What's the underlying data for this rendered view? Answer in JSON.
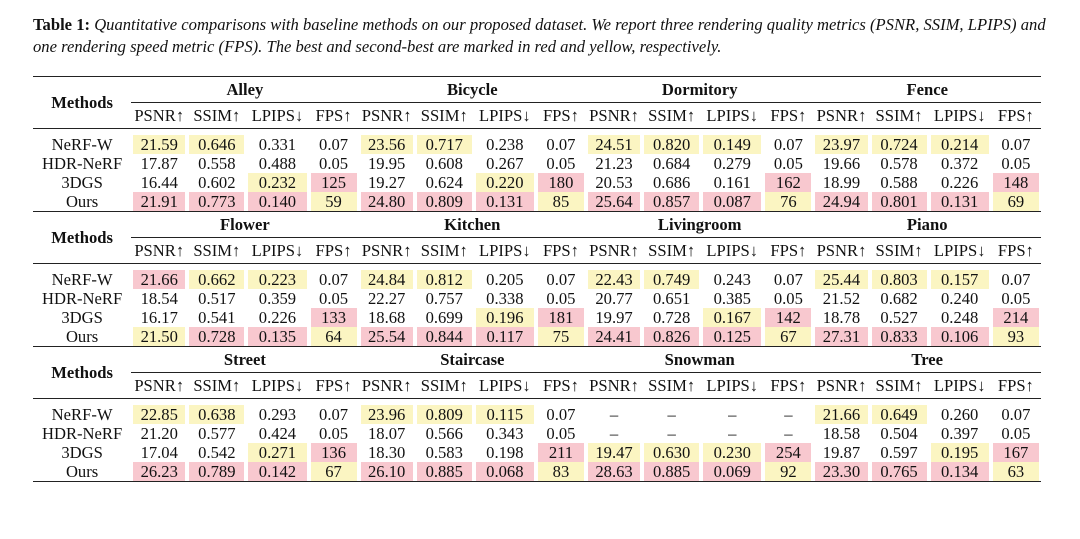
{
  "caption": {
    "label": "Table 1:",
    "text": "Quantitative comparisons with baseline methods on our proposed dataset. We report three rendering quality metrics (PSNR, SSIM, LPIPS) and one rendering speed metric (FPS). The best and second-best are marked in red and yellow, respectively."
  },
  "colors": {
    "best": "#f8c8cf",
    "second": "#fbf5c2"
  },
  "methods_label": "Methods",
  "metric_labels": [
    "PSNR↑",
    "SSIM↑",
    "LPIPS↓",
    "FPS↑"
  ],
  "sections": [
    {
      "scenes": [
        "Alley",
        "Bicycle",
        "Dormitory",
        "Fence"
      ],
      "rows": [
        {
          "method": "NeRF-W",
          "cells": [
            {
              "v": "21.59",
              "hl": "second"
            },
            {
              "v": "0.646",
              "hl": "second"
            },
            {
              "v": "0.331",
              "hl": ""
            },
            {
              "v": "0.07",
              "hl": ""
            },
            {
              "v": "23.56",
              "hl": "second"
            },
            {
              "v": "0.717",
              "hl": "second"
            },
            {
              "v": "0.238",
              "hl": ""
            },
            {
              "v": "0.07",
              "hl": ""
            },
            {
              "v": "24.51",
              "hl": "second"
            },
            {
              "v": "0.820",
              "hl": "second"
            },
            {
              "v": "0.149",
              "hl": "second"
            },
            {
              "v": "0.07",
              "hl": ""
            },
            {
              "v": "23.97",
              "hl": "second"
            },
            {
              "v": "0.724",
              "hl": "second"
            },
            {
              "v": "0.214",
              "hl": "second"
            },
            {
              "v": "0.07",
              "hl": ""
            }
          ]
        },
        {
          "method": "HDR-NeRF",
          "cells": [
            {
              "v": "17.87",
              "hl": ""
            },
            {
              "v": "0.558",
              "hl": ""
            },
            {
              "v": "0.488",
              "hl": ""
            },
            {
              "v": "0.05",
              "hl": ""
            },
            {
              "v": "19.95",
              "hl": ""
            },
            {
              "v": "0.608",
              "hl": ""
            },
            {
              "v": "0.267",
              "hl": ""
            },
            {
              "v": "0.05",
              "hl": ""
            },
            {
              "v": "21.23",
              "hl": ""
            },
            {
              "v": "0.684",
              "hl": ""
            },
            {
              "v": "0.279",
              "hl": ""
            },
            {
              "v": "0.05",
              "hl": ""
            },
            {
              "v": "19.66",
              "hl": ""
            },
            {
              "v": "0.578",
              "hl": ""
            },
            {
              "v": "0.372",
              "hl": ""
            },
            {
              "v": "0.05",
              "hl": ""
            }
          ]
        },
        {
          "method": "3DGS",
          "cells": [
            {
              "v": "16.44",
              "hl": ""
            },
            {
              "v": "0.602",
              "hl": ""
            },
            {
              "v": "0.232",
              "hl": "second"
            },
            {
              "v": "125",
              "hl": "best"
            },
            {
              "v": "19.27",
              "hl": ""
            },
            {
              "v": "0.624",
              "hl": ""
            },
            {
              "v": "0.220",
              "hl": "second"
            },
            {
              "v": "180",
              "hl": "best"
            },
            {
              "v": "20.53",
              "hl": ""
            },
            {
              "v": "0.686",
              "hl": ""
            },
            {
              "v": "0.161",
              "hl": ""
            },
            {
              "v": "162",
              "hl": "best"
            },
            {
              "v": "18.99",
              "hl": ""
            },
            {
              "v": "0.588",
              "hl": ""
            },
            {
              "v": "0.226",
              "hl": ""
            },
            {
              "v": "148",
              "hl": "best"
            }
          ]
        },
        {
          "method": "Ours",
          "cells": [
            {
              "v": "21.91",
              "hl": "best"
            },
            {
              "v": "0.773",
              "hl": "best"
            },
            {
              "v": "0.140",
              "hl": "best"
            },
            {
              "v": "59",
              "hl": "second"
            },
            {
              "v": "24.80",
              "hl": "best"
            },
            {
              "v": "0.809",
              "hl": "best"
            },
            {
              "v": "0.131",
              "hl": "best"
            },
            {
              "v": "85",
              "hl": "second"
            },
            {
              "v": "25.64",
              "hl": "best"
            },
            {
              "v": "0.857",
              "hl": "best"
            },
            {
              "v": "0.087",
              "hl": "best"
            },
            {
              "v": "76",
              "hl": "second"
            },
            {
              "v": "24.94",
              "hl": "best"
            },
            {
              "v": "0.801",
              "hl": "best"
            },
            {
              "v": "0.131",
              "hl": "best"
            },
            {
              "v": "69",
              "hl": "second"
            }
          ]
        }
      ]
    },
    {
      "scenes": [
        "Flower",
        "Kitchen",
        "Livingroom",
        "Piano"
      ],
      "rows": [
        {
          "method": "NeRF-W",
          "cells": [
            {
              "v": "21.66",
              "hl": "best"
            },
            {
              "v": "0.662",
              "hl": "second"
            },
            {
              "v": "0.223",
              "hl": "second"
            },
            {
              "v": "0.07",
              "hl": ""
            },
            {
              "v": "24.84",
              "hl": "second"
            },
            {
              "v": "0.812",
              "hl": "second"
            },
            {
              "v": "0.205",
              "hl": ""
            },
            {
              "v": "0.07",
              "hl": ""
            },
            {
              "v": "22.43",
              "hl": "second"
            },
            {
              "v": "0.749",
              "hl": "second"
            },
            {
              "v": "0.243",
              "hl": ""
            },
            {
              "v": "0.07",
              "hl": ""
            },
            {
              "v": "25.44",
              "hl": "second"
            },
            {
              "v": "0.803",
              "hl": "second"
            },
            {
              "v": "0.157",
              "hl": "second"
            },
            {
              "v": "0.07",
              "hl": ""
            }
          ]
        },
        {
          "method": "HDR-NeRF",
          "cells": [
            {
              "v": "18.54",
              "hl": ""
            },
            {
              "v": "0.517",
              "hl": ""
            },
            {
              "v": "0.359",
              "hl": ""
            },
            {
              "v": "0.05",
              "hl": ""
            },
            {
              "v": "22.27",
              "hl": ""
            },
            {
              "v": "0.757",
              "hl": ""
            },
            {
              "v": "0.338",
              "hl": ""
            },
            {
              "v": "0.05",
              "hl": ""
            },
            {
              "v": "20.77",
              "hl": ""
            },
            {
              "v": "0.651",
              "hl": ""
            },
            {
              "v": "0.385",
              "hl": ""
            },
            {
              "v": "0.05",
              "hl": ""
            },
            {
              "v": "21.52",
              "hl": ""
            },
            {
              "v": "0.682",
              "hl": ""
            },
            {
              "v": "0.240",
              "hl": ""
            },
            {
              "v": "0.05",
              "hl": ""
            }
          ]
        },
        {
          "method": "3DGS",
          "cells": [
            {
              "v": "16.17",
              "hl": ""
            },
            {
              "v": "0.541",
              "hl": ""
            },
            {
              "v": "0.226",
              "hl": ""
            },
            {
              "v": "133",
              "hl": "best"
            },
            {
              "v": "18.68",
              "hl": ""
            },
            {
              "v": "0.699",
              "hl": ""
            },
            {
              "v": "0.196",
              "hl": "second"
            },
            {
              "v": "181",
              "hl": "best"
            },
            {
              "v": "19.97",
              "hl": ""
            },
            {
              "v": "0.728",
              "hl": ""
            },
            {
              "v": "0.167",
              "hl": "second"
            },
            {
              "v": "142",
              "hl": "best"
            },
            {
              "v": "18.78",
              "hl": ""
            },
            {
              "v": "0.527",
              "hl": ""
            },
            {
              "v": "0.248",
              "hl": ""
            },
            {
              "v": "214",
              "hl": "best"
            }
          ]
        },
        {
          "method": "Ours",
          "cells": [
            {
              "v": "21.50",
              "hl": "second"
            },
            {
              "v": "0.728",
              "hl": "best"
            },
            {
              "v": "0.135",
              "hl": "best"
            },
            {
              "v": "64",
              "hl": "second"
            },
            {
              "v": "25.54",
              "hl": "best"
            },
            {
              "v": "0.844",
              "hl": "best"
            },
            {
              "v": "0.117",
              "hl": "best"
            },
            {
              "v": "75",
              "hl": "second"
            },
            {
              "v": "24.41",
              "hl": "best"
            },
            {
              "v": "0.826",
              "hl": "best"
            },
            {
              "v": "0.125",
              "hl": "best"
            },
            {
              "v": "67",
              "hl": "second"
            },
            {
              "v": "27.31",
              "hl": "best"
            },
            {
              "v": "0.833",
              "hl": "best"
            },
            {
              "v": "0.106",
              "hl": "best"
            },
            {
              "v": "93",
              "hl": "second"
            }
          ]
        }
      ]
    },
    {
      "scenes": [
        "Street",
        "Staircase",
        "Snowman",
        "Tree"
      ],
      "rows": [
        {
          "method": "NeRF-W",
          "cells": [
            {
              "v": "22.85",
              "hl": "second"
            },
            {
              "v": "0.638",
              "hl": "second"
            },
            {
              "v": "0.293",
              "hl": ""
            },
            {
              "v": "0.07",
              "hl": ""
            },
            {
              "v": "23.96",
              "hl": "second"
            },
            {
              "v": "0.809",
              "hl": "second"
            },
            {
              "v": "0.115",
              "hl": "second"
            },
            {
              "v": "0.07",
              "hl": ""
            },
            {
              "v": "–",
              "hl": ""
            },
            {
              "v": "–",
              "hl": ""
            },
            {
              "v": "–",
              "hl": ""
            },
            {
              "v": "–",
              "hl": ""
            },
            {
              "v": "21.66",
              "hl": "second"
            },
            {
              "v": "0.649",
              "hl": "second"
            },
            {
              "v": "0.260",
              "hl": ""
            },
            {
              "v": "0.07",
              "hl": ""
            }
          ]
        },
        {
          "method": "HDR-NeRF",
          "cells": [
            {
              "v": "21.20",
              "hl": ""
            },
            {
              "v": "0.577",
              "hl": ""
            },
            {
              "v": "0.424",
              "hl": ""
            },
            {
              "v": "0.05",
              "hl": ""
            },
            {
              "v": "18.07",
              "hl": ""
            },
            {
              "v": "0.566",
              "hl": ""
            },
            {
              "v": "0.343",
              "hl": ""
            },
            {
              "v": "0.05",
              "hl": ""
            },
            {
              "v": "–",
              "hl": ""
            },
            {
              "v": "–",
              "hl": ""
            },
            {
              "v": "–",
              "hl": ""
            },
            {
              "v": "–",
              "hl": ""
            },
            {
              "v": "18.58",
              "hl": ""
            },
            {
              "v": "0.504",
              "hl": ""
            },
            {
              "v": "0.397",
              "hl": ""
            },
            {
              "v": "0.05",
              "hl": ""
            }
          ]
        },
        {
          "method": "3DGS",
          "cells": [
            {
              "v": "17.04",
              "hl": ""
            },
            {
              "v": "0.542",
              "hl": ""
            },
            {
              "v": "0.271",
              "hl": "second"
            },
            {
              "v": "136",
              "hl": "best"
            },
            {
              "v": "18.30",
              "hl": ""
            },
            {
              "v": "0.583",
              "hl": ""
            },
            {
              "v": "0.198",
              "hl": ""
            },
            {
              "v": "211",
              "hl": "best"
            },
            {
              "v": "19.47",
              "hl": "second"
            },
            {
              "v": "0.630",
              "hl": "second"
            },
            {
              "v": "0.230",
              "hl": "second"
            },
            {
              "v": "254",
              "hl": "best"
            },
            {
              "v": "19.87",
              "hl": ""
            },
            {
              "v": "0.597",
              "hl": ""
            },
            {
              "v": "0.195",
              "hl": "second"
            },
            {
              "v": "167",
              "hl": "best"
            }
          ]
        },
        {
          "method": "Ours",
          "cells": [
            {
              "v": "26.23",
              "hl": "best"
            },
            {
              "v": "0.789",
              "hl": "best"
            },
            {
              "v": "0.142",
              "hl": "best"
            },
            {
              "v": "67",
              "hl": "second"
            },
            {
              "v": "26.10",
              "hl": "best"
            },
            {
              "v": "0.885",
              "hl": "best"
            },
            {
              "v": "0.068",
              "hl": "best"
            },
            {
              "v": "83",
              "hl": "second"
            },
            {
              "v": "28.63",
              "hl": "best"
            },
            {
              "v": "0.885",
              "hl": "best"
            },
            {
              "v": "0.069",
              "hl": "best"
            },
            {
              "v": "92",
              "hl": "second"
            },
            {
              "v": "23.30",
              "hl": "best"
            },
            {
              "v": "0.765",
              "hl": "best"
            },
            {
              "v": "0.134",
              "hl": "best"
            },
            {
              "v": "63",
              "hl": "second"
            }
          ]
        }
      ]
    }
  ]
}
